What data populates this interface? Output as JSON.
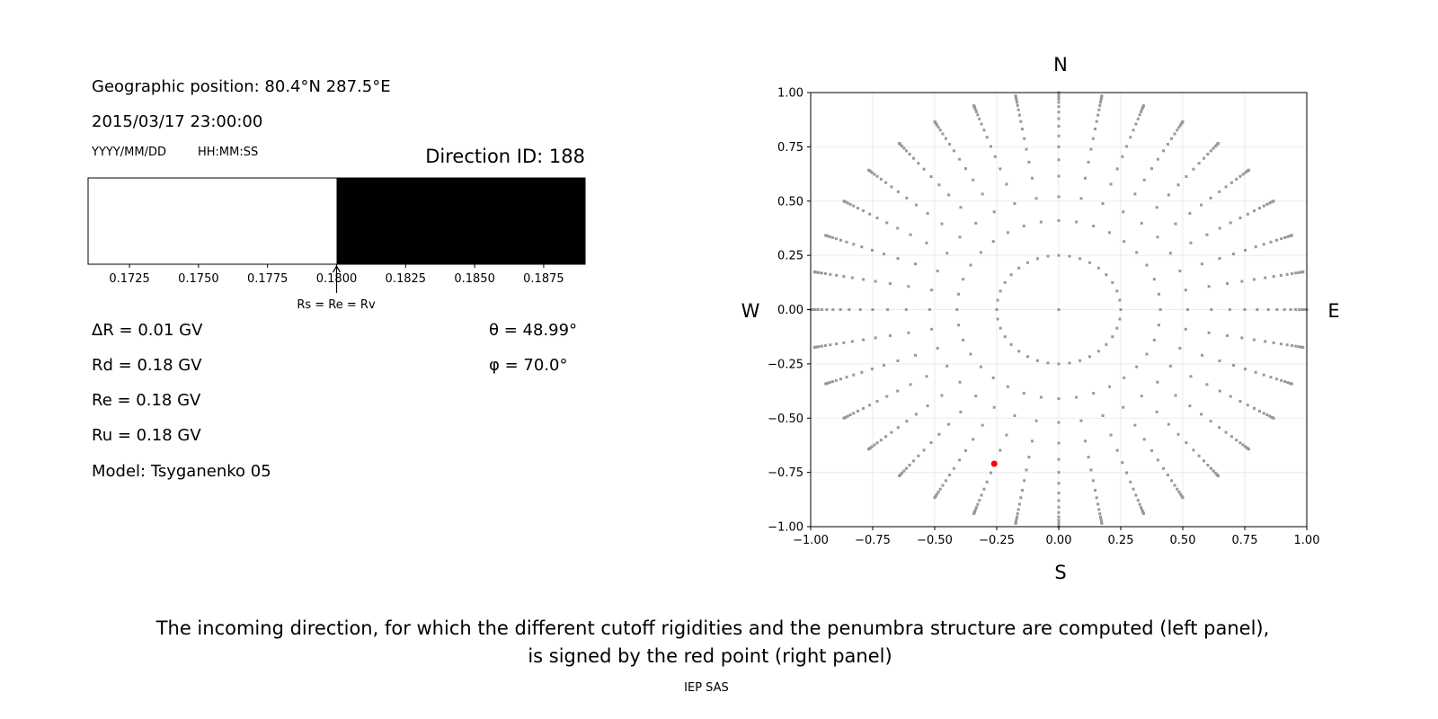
{
  "left_panel": {
    "geo_position": "Geographic position: 80.4°N 287.5°E",
    "datetime": "2015/03/17 23:00:00",
    "date_format": "YYYY/MM/DD",
    "time_format": "HH:MM:SS",
    "direction_id": "Direction ID: 188",
    "marker_label": "Rs = Re = Rv",
    "delta_r": "ΔR = 0.01 GV",
    "rd": "Rd = 0.18 GV",
    "re": "Re = 0.18 GV",
    "ru": "Ru = 0.18 GV",
    "model": "Model: Tsyganenko 05",
    "theta": "θ = 48.99°",
    "phi": "φ = 70.0°"
  },
  "caption": {
    "line1": "The incoming direction, for which the different cutoff rigidities and the penumbra structure are computed (left panel),",
    "line2": "is signed by the red point (right panel)",
    "credit": "IEP SAS"
  },
  "chart_data": [
    {
      "type": "bar",
      "description_kind": "penumbra strip",
      "xlim": [
        0.171,
        0.189
      ],
      "xticks": [
        "0.1725",
        "0.1750",
        "0.1775",
        "0.1800",
        "0.1825",
        "0.1850",
        "0.1875"
      ],
      "xtick_values": [
        0.1725,
        0.175,
        0.1775,
        0.18,
        0.1825,
        0.185,
        0.1875
      ],
      "segments": [
        {
          "from": 0.171,
          "to": 0.18,
          "color": "#ffffff"
        },
        {
          "from": 0.18,
          "to": 0.189,
          "color": "#000000"
        }
      ],
      "marker_value": 0.18
    },
    {
      "type": "scatter",
      "xlim": [
        -1,
        1
      ],
      "ylim": [
        -1,
        1
      ],
      "xticks": [
        "−1.00",
        "−0.75",
        "−0.50",
        "−0.25",
        "0.00",
        "0.25",
        "0.50",
        "0.75",
        "1.00"
      ],
      "yticks": [
        "−1.00",
        "−0.75",
        "−0.50",
        "−0.25",
        "0.00",
        "0.25",
        "0.50",
        "0.75",
        "1.00"
      ],
      "tick_values": [
        -1,
        -0.75,
        -0.5,
        -0.25,
        0,
        0.25,
        0.5,
        0.75,
        1
      ],
      "grid": true,
      "compass": {
        "top": "N",
        "bottom": "S",
        "left": "W",
        "right": "E"
      },
      "grid_points": {
        "color": "#999999",
        "center": [
          0,
          0
        ],
        "ring_radii": [
          0.25,
          0.41,
          0.52,
          0.615,
          0.69,
          0.75,
          0.8,
          0.845,
          0.88,
          0.91,
          0.935,
          0.955,
          0.97,
          0.982,
          0.991,
          0.997,
          1.0
        ],
        "azimuth_step_deg": 10
      },
      "selected_point": {
        "x": -0.26,
        "y": -0.71,
        "color": "#ff0000"
      }
    }
  ]
}
